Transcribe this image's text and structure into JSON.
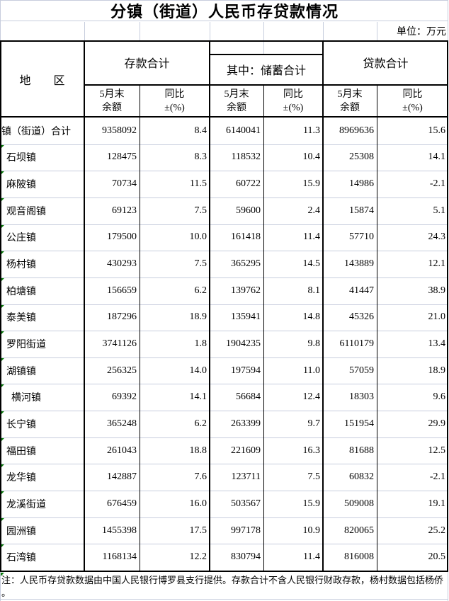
{
  "title": "分镇（街道）人民币存贷款情况",
  "unit_label": "单位：万元",
  "headers": {
    "region": "地　　区",
    "deposits": "存款合计",
    "savings": "其中：储蓄合计",
    "loans": "贷款合计",
    "sub_balance_line1": "5月末",
    "sub_balance_line2": "余额",
    "sub_yoy_line1": "同比",
    "sub_yoy_line2": "±(%)"
  },
  "table": {
    "columns": [
      "地区",
      "存款合计-5月末余额",
      "存款合计-同比±(%)",
      "其中储蓄合计-5月末余额",
      "其中储蓄合计-同比±(%)",
      "贷款合计-5月末余额",
      "贷款合计-同比±(%)"
    ],
    "rows": [
      {
        "region": "镇（街道）合计",
        "indent": 0,
        "marker": false,
        "values": [
          "9358092",
          "8.4",
          "6140041",
          "11.3",
          "8969636",
          "15.6"
        ]
      },
      {
        "region": "石坝镇",
        "indent": 1,
        "marker": true,
        "values": [
          "128475",
          "8.3",
          "118532",
          "10.4",
          "25308",
          "14.1"
        ]
      },
      {
        "region": "麻陂镇",
        "indent": 1,
        "marker": true,
        "values": [
          "70734",
          "11.5",
          "60722",
          "15.9",
          "14986",
          "-2.1"
        ]
      },
      {
        "region": "观音阁镇",
        "indent": 1,
        "marker": true,
        "values": [
          "69123",
          "7.5",
          "59600",
          "2.4",
          "15874",
          "5.1"
        ]
      },
      {
        "region": "公庄镇",
        "indent": 1,
        "marker": true,
        "values": [
          "179500",
          "10.0",
          "161418",
          "11.4",
          "57710",
          "24.3"
        ]
      },
      {
        "region": "杨村镇",
        "indent": 1,
        "marker": true,
        "values": [
          "430293",
          "7.5",
          "365295",
          "14.5",
          "143889",
          "12.1"
        ]
      },
      {
        "region": "柏塘镇",
        "indent": 1,
        "marker": true,
        "values": [
          "156659",
          "6.2",
          "139762",
          "8.1",
          "41447",
          "38.9"
        ]
      },
      {
        "region": "泰美镇",
        "indent": 1,
        "marker": true,
        "values": [
          "187296",
          "18.9",
          "135941",
          "14.8",
          "45326",
          "21.0"
        ]
      },
      {
        "region": "罗阳街道",
        "indent": 1,
        "marker": true,
        "values": [
          "3741126",
          "1.8",
          "1904235",
          "9.8",
          "6110179",
          "13.4"
        ]
      },
      {
        "region": "湖镇镇",
        "indent": 1,
        "marker": true,
        "values": [
          "256325",
          "14.0",
          "197594",
          "11.0",
          "57059",
          "18.9"
        ]
      },
      {
        "region": "横河镇",
        "indent": 2,
        "marker": true,
        "values": [
          "69392",
          "14.1",
          "56684",
          "12.4",
          "18303",
          "9.6"
        ]
      },
      {
        "region": "长宁镇",
        "indent": 1,
        "marker": true,
        "values": [
          "365248",
          "6.2",
          "263399",
          "9.7",
          "151954",
          "29.9"
        ]
      },
      {
        "region": "福田镇",
        "indent": 1,
        "marker": true,
        "values": [
          "261043",
          "18.8",
          "221609",
          "16.3",
          "81688",
          "12.5"
        ]
      },
      {
        "region": "龙华镇",
        "indent": 1,
        "marker": true,
        "values": [
          "142887",
          "7.6",
          "123711",
          "7.5",
          "60832",
          "-2.1"
        ]
      },
      {
        "region": "龙溪街道",
        "indent": 1,
        "marker": true,
        "values": [
          "676459",
          "16.0",
          "503567",
          "15.9",
          "509008",
          "19.1"
        ]
      },
      {
        "region": "园洲镇",
        "indent": 1,
        "marker": true,
        "values": [
          "1455398",
          "17.5",
          "997178",
          "10.9",
          "820065",
          "25.2"
        ]
      },
      {
        "region": "石湾镇",
        "indent": 1,
        "marker": true,
        "values": [
          "1168134",
          "12.2",
          "830794",
          "11.4",
          "816008",
          "20.5"
        ]
      }
    ]
  },
  "note": {
    "marker": true,
    "lines": [
      "注：人民币存贷款数据由中国人民银行博罗县支行提供。存款合计不含人民银行财政存款，杨村数据包括杨侨",
      "。"
    ]
  },
  "colors": {
    "gridline": "#c7cddd",
    "border": "#000000",
    "marker_green": "#0a7a0a",
    "text": "#000000",
    "background": "#ffffff"
  }
}
